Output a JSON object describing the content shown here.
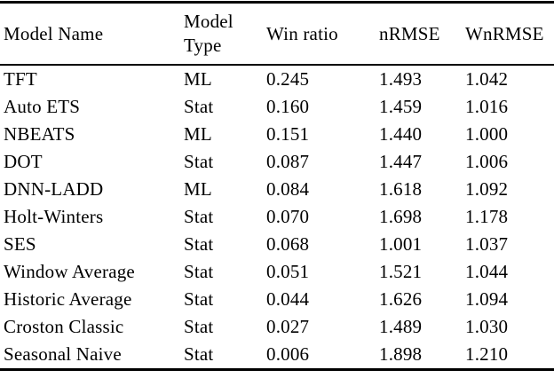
{
  "colors": {
    "text": "#000000",
    "background": "#ffffff",
    "rule": "#000000"
  },
  "table": {
    "columns": [
      {
        "key": "name",
        "label": "Model Name"
      },
      {
        "key": "type",
        "label": "Model Type"
      },
      {
        "key": "win_ratio",
        "label": "Win ratio"
      },
      {
        "key": "nrmse",
        "label": "nRMSE"
      },
      {
        "key": "wnrmse",
        "label": "WnRMSE"
      }
    ],
    "rows": [
      {
        "name": "TFT",
        "type": "ML",
        "win_ratio": "0.245",
        "nrmse": "1.493",
        "wnrmse": "1.042"
      },
      {
        "name": "Auto ETS",
        "type": "Stat",
        "win_ratio": "0.160",
        "nrmse": "1.459",
        "wnrmse": "1.016"
      },
      {
        "name": "NBEATS",
        "type": "ML",
        "win_ratio": "0.151",
        "nrmse": "1.440",
        "wnrmse": "1.000"
      },
      {
        "name": "DOT",
        "type": "Stat",
        "win_ratio": "0.087",
        "nrmse": "1.447",
        "wnrmse": "1.006"
      },
      {
        "name": "DNN-LADD",
        "type": "ML",
        "win_ratio": "0.084",
        "nrmse": "1.618",
        "wnrmse": "1.092"
      },
      {
        "name": "Holt-Winters",
        "type": "Stat",
        "win_ratio": "0.070",
        "nrmse": "1.698",
        "wnrmse": "1.178"
      },
      {
        "name": "SES",
        "type": "Stat",
        "win_ratio": "0.068",
        "nrmse": "1.001",
        "wnrmse": "1.037"
      },
      {
        "name": "Window Average",
        "type": "Stat",
        "win_ratio": "0.051",
        "nrmse": "1.521",
        "wnrmse": "1.044"
      },
      {
        "name": "Historic Average",
        "type": "Stat",
        "win_ratio": "0.044",
        "nrmse": "1.626",
        "wnrmse": "1.094"
      },
      {
        "name": "Croston Classic",
        "type": "Stat",
        "win_ratio": "0.027",
        "nrmse": "1.489",
        "wnrmse": "1.030"
      },
      {
        "name": "Seasonal Naive",
        "type": "Stat",
        "win_ratio": "0.006",
        "nrmse": "1.898",
        "wnrmse": "1.210"
      }
    ]
  }
}
